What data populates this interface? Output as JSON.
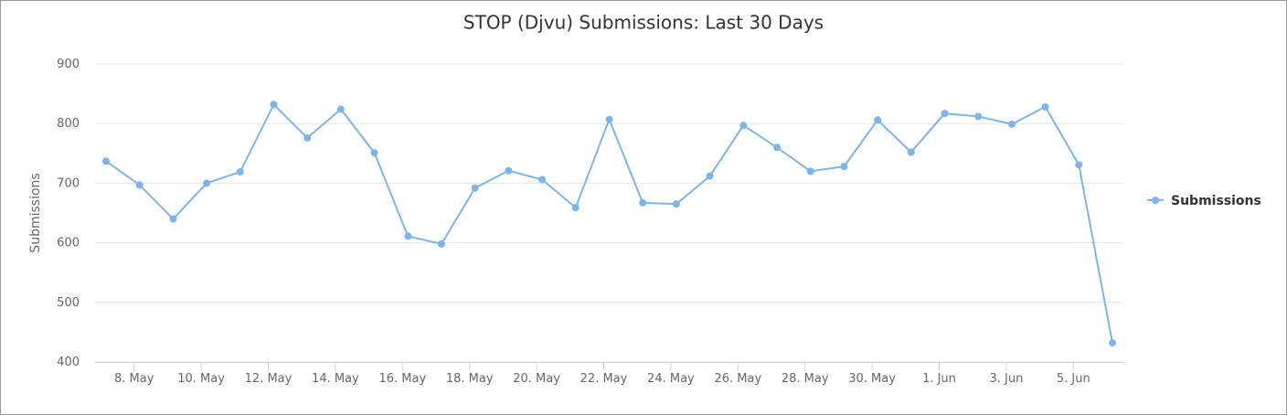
{
  "chart_data": {
    "type": "line",
    "title": "STOP (Djvu) Submissions: Last 30 Days",
    "y_label": "Submissions",
    "categories": [
      null,
      "8. May",
      null,
      "10. May",
      null,
      "12. May",
      null,
      "14. May",
      null,
      "16. May",
      null,
      "18. May",
      null,
      "20. May",
      null,
      "22. May",
      null,
      "24. May",
      null,
      "26. May",
      null,
      "28. May",
      null,
      "30. May",
      null,
      "1. Jun",
      null,
      "3. Jun",
      null,
      "5. Jun",
      null
    ],
    "series": [
      {
        "name": "Submissions",
        "color": "#7cb5ec",
        "values": [
          737,
          697,
          640,
          700,
          719,
          832,
          776,
          824,
          751,
          611,
          598,
          692,
          721,
          706,
          659,
          807,
          667,
          665,
          712,
          797,
          760,
          720,
          728,
          806,
          752,
          817,
          812,
          799,
          828,
          731,
          432
        ]
      }
    ],
    "ylim": [
      400,
      900
    ],
    "yticks": [
      400,
      500,
      600,
      700,
      800,
      900
    ],
    "grid": true,
    "legend": "right"
  }
}
